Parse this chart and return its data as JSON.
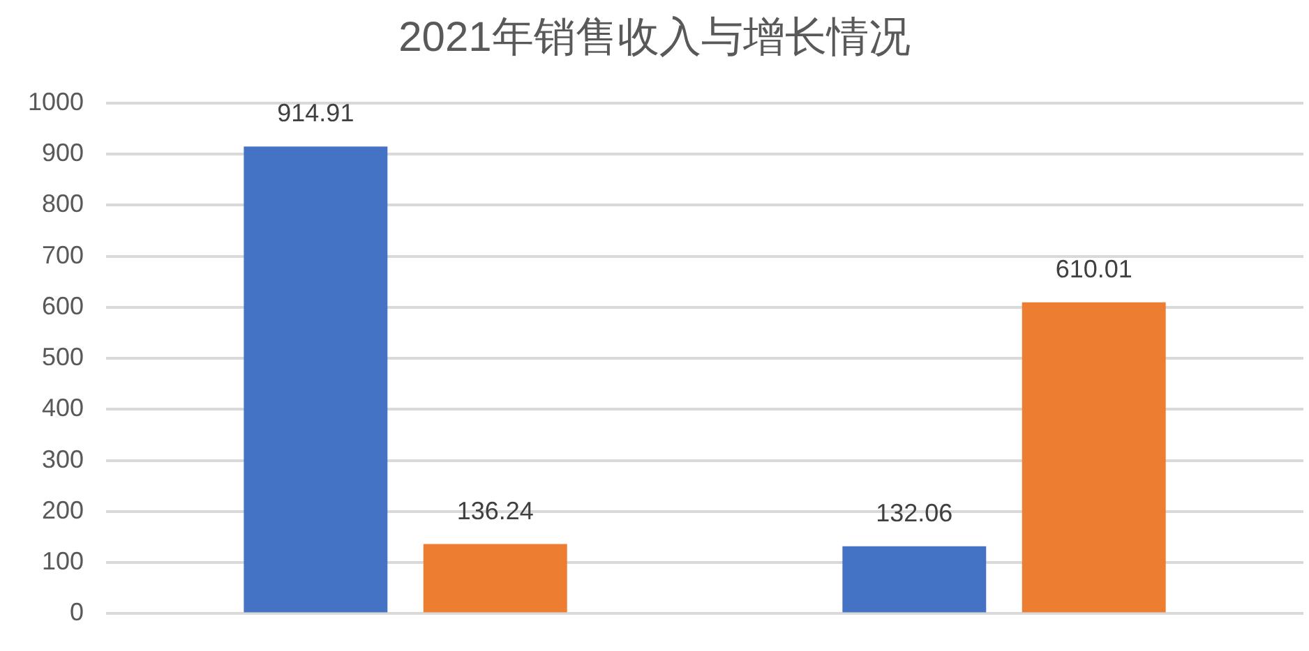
{
  "chart_data": {
    "type": "bar",
    "title": "2021年销售收入与增长情况",
    "categories": [
      null,
      null
    ],
    "series": [
      {
        "color": "#4472c4",
        "values": [
          914.91,
          132.06
        ]
      },
      {
        "color": "#ed7d31",
        "values": [
          136.24,
          610.01
        ]
      }
    ],
    "ylim": [
      0,
      1000
    ],
    "yticks": [
      0,
      100,
      200,
      300,
      400,
      500,
      600,
      700,
      800,
      900,
      1000
    ],
    "grid": "y",
    "legend": false,
    "data_labels": true
  }
}
